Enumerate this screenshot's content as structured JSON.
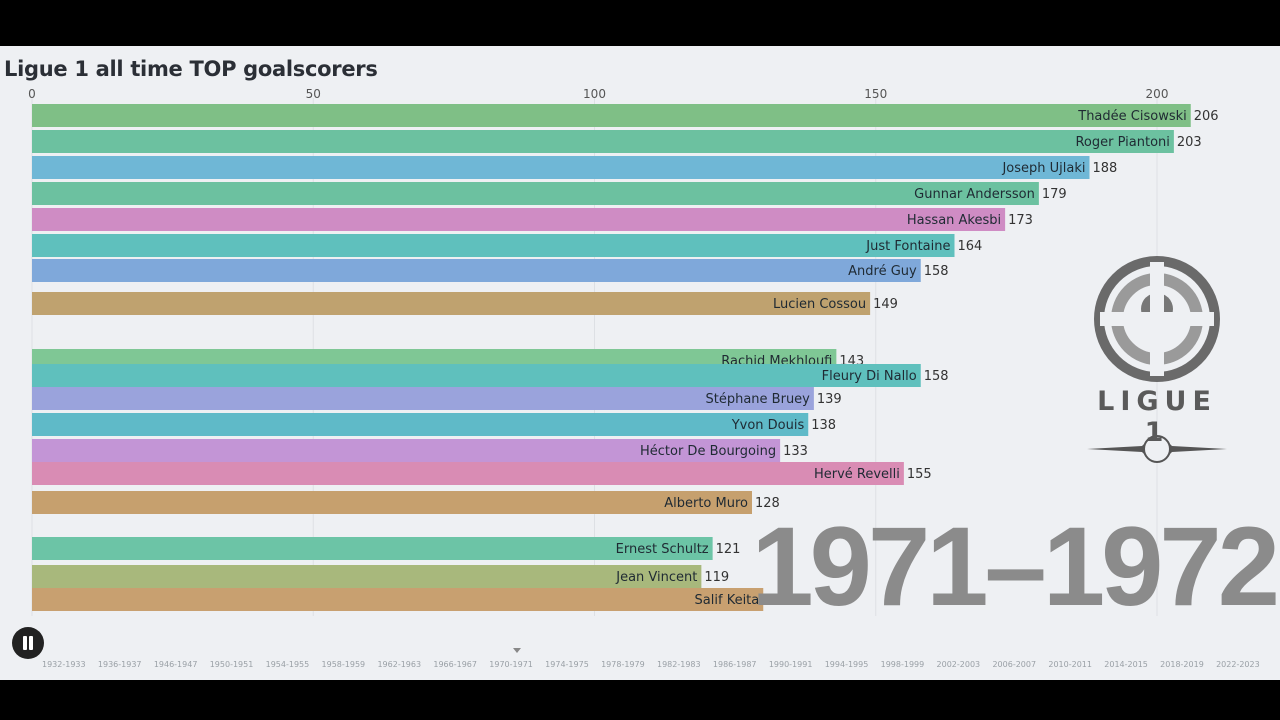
{
  "title": "Ligue 1 all time TOP goalscorers",
  "year_label": "1971–1972",
  "logo": {
    "text": "LIGUE 1",
    "icon": "ligue1-ball-logo"
  },
  "controls": {
    "pause_icon": "pause-icon"
  },
  "timeline": {
    "labels": [
      "1932-1933",
      "1936-1937",
      "1946-1947",
      "1950-1951",
      "1954-1955",
      "1958-1959",
      "1962-1963",
      "1966-1967",
      "1970-1971",
      "1974-1975",
      "1978-1979",
      "1982-1983",
      "1986-1987",
      "1990-1991",
      "1994-1995",
      "1998-1999",
      "2002-2003",
      "2006-2007",
      "2010-2011",
      "2014-2015",
      "2018-2019",
      "2022-2023"
    ],
    "current": "1971-1972"
  },
  "chart_data": {
    "type": "bar",
    "orientation": "horizontal",
    "title": "Ligue 1 all time TOP goalscorers",
    "xlim": [
      0,
      220
    ],
    "xticks": [
      0,
      50,
      100,
      150,
      200
    ],
    "grid": true,
    "categories": [
      "Thadée Cisowski",
      "Roger Piantoni",
      "Joseph Ujlaki",
      "Gunnar Andersson",
      "Hassan Akesbi",
      "Just Fontaine",
      "André Guy",
      "Lucien Cossou",
      "Rachid Mekhloufi",
      "Fleury Di Nallo",
      "Stéphane Bruey",
      "Yvon Douis",
      "Héctor De Bourgoing",
      "Hervé Revelli",
      "Alberto Muro",
      "Ernest Schultz",
      "Jean Vincent",
      "Salif Keita"
    ],
    "values": [
      206,
      203,
      188,
      179,
      173,
      164,
      158,
      149,
      143,
      158,
      139,
      138,
      133,
      155,
      128,
      121,
      119,
      130
    ],
    "colors": [
      "#7fbf86",
      "#6cc1a0",
      "#6fb7d6",
      "#6cc1a0",
      "#cf8cc4",
      "#5fc0bd",
      "#7fa8da",
      "#bfa26f",
      "#7fc795",
      "#5fc0bd",
      "#9aa3dc",
      "#5fbac8",
      "#c395d6",
      "#d98cb4",
      "#c6a06e",
      "#6cc4a6",
      "#a8b87c",
      "#c8a070"
    ]
  }
}
